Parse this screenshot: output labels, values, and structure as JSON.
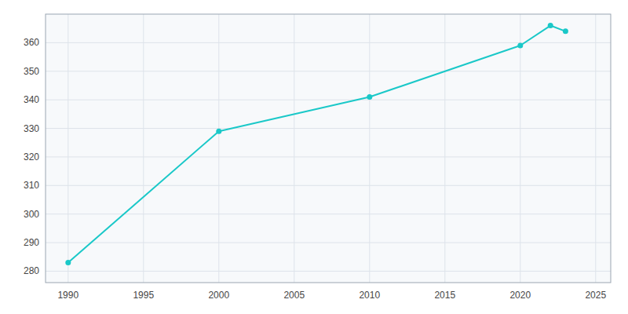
{
  "chart_data": {
    "type": "line",
    "x": [
      1990,
      2000,
      2010,
      2020,
      2022,
      2023
    ],
    "values": [
      283,
      329,
      341,
      359,
      366,
      364
    ],
    "color": "#1AC8C8",
    "marker": "circle",
    "xlim": [
      1988.5,
      2026
    ],
    "ylim": [
      276,
      370
    ],
    "xticks": [
      1990,
      1995,
      2000,
      2005,
      2010,
      2015,
      2020,
      2025
    ],
    "yticks": [
      280,
      290,
      300,
      310,
      320,
      330,
      340,
      350,
      360
    ],
    "grid": true
  }
}
